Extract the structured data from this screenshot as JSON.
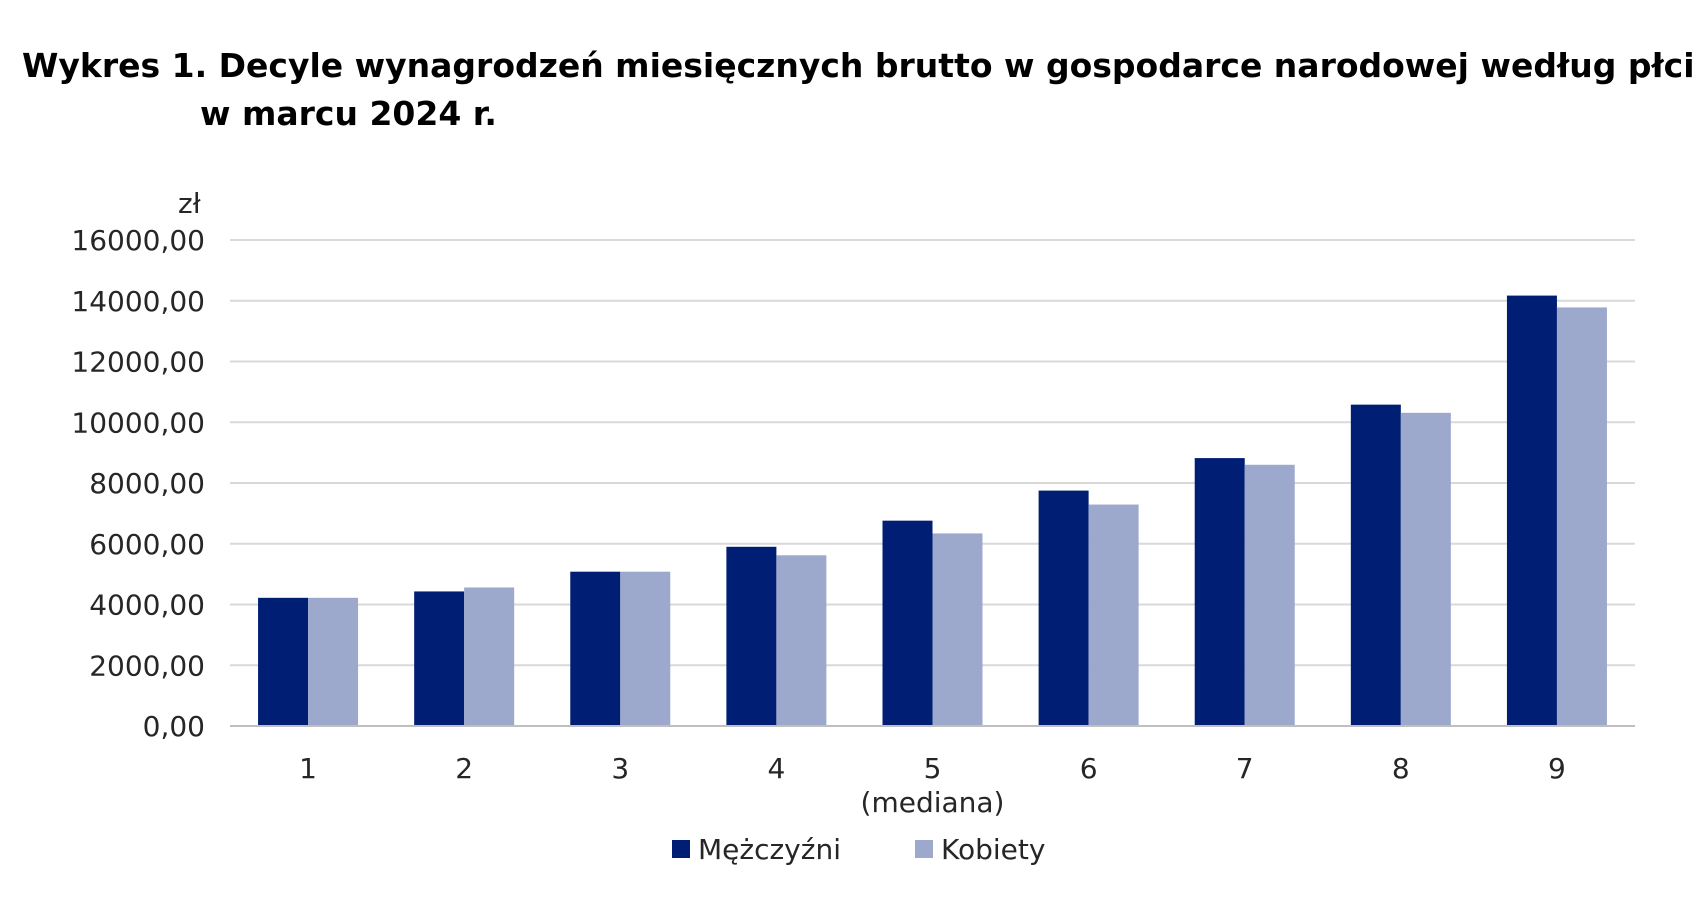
{
  "chart_data": {
    "type": "bar",
    "title_line1": "Wykres 1. Decyle wynagrodzeń miesięcznych brutto w gospodarce narodowej według płci",
    "title_line2": "w marcu 2024 r.",
    "y_unit": "zł",
    "categories": [
      "1",
      "2",
      "3",
      "4",
      "5",
      "6",
      "7",
      "8",
      "9"
    ],
    "category_sublabels": [
      "",
      "",
      "",
      "",
      "(mediana)",
      "",
      "",
      "",
      ""
    ],
    "series": [
      {
        "name": "Mężczyźni",
        "color": "#001f74",
        "values": [
          4220,
          4430,
          5080,
          5900,
          6760,
          7750,
          8820,
          10580,
          14170
        ]
      },
      {
        "name": "Kobiety",
        "color": "#9ca8cc",
        "values": [
          4220,
          4560,
          5080,
          5620,
          6340,
          7290,
          8600,
          10310,
          13780
        ]
      }
    ],
    "ylim": [
      0,
      16000
    ],
    "y_ticks": [
      "0,00",
      "2000,00",
      "4000,00",
      "6000,00",
      "8000,00",
      "10000,00",
      "12000,00",
      "14000,00",
      "16000,00"
    ],
    "y_tick_values": [
      0,
      2000,
      4000,
      6000,
      8000,
      10000,
      12000,
      14000,
      16000
    ],
    "grid": true,
    "legend_position": "bottom-center"
  }
}
